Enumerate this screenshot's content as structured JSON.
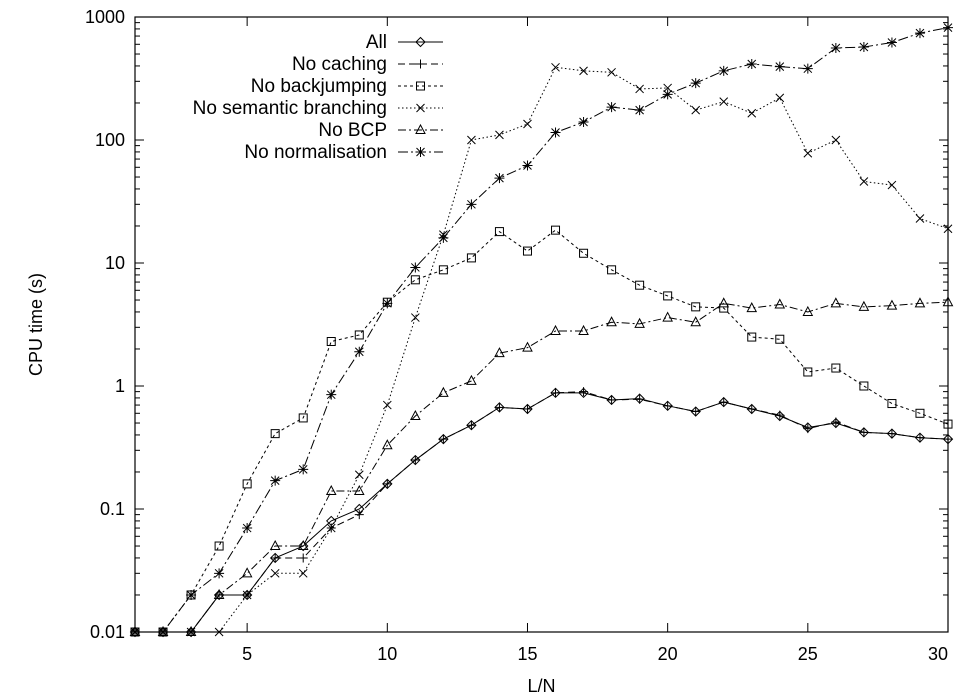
{
  "chart_data": {
    "type": "line",
    "xlabel": "L/N",
    "ylabel": "CPU time (s)",
    "xlim": [
      1,
      30
    ],
    "ylim": [
      0.01,
      1000
    ],
    "yscale": "log",
    "grid": false,
    "legend_position": "top-left",
    "x_ticks": [
      5,
      10,
      15,
      20,
      25,
      30
    ],
    "x_tick_labels": [
      "5",
      "10",
      "15",
      "20",
      "25",
      "30"
    ],
    "y_ticks": [
      0.01,
      0.1,
      1,
      10,
      100,
      1000
    ],
    "y_tick_labels": [
      "0.01",
      "0.1",
      "1",
      "10",
      "100",
      "1000"
    ],
    "x": [
      1,
      2,
      3,
      4,
      5,
      6,
      7,
      8,
      9,
      10,
      11,
      12,
      13,
      14,
      15,
      16,
      17,
      18,
      19,
      20,
      21,
      22,
      23,
      24,
      25,
      26,
      27,
      28,
      29,
      30
    ],
    "series": [
      {
        "name": "All",
        "marker": "diamond",
        "dash": "",
        "values": [
          0.01,
          0.01,
          0.01,
          0.02,
          0.02,
          0.04,
          0.05,
          0.08,
          0.1,
          0.16,
          0.25,
          0.37,
          0.48,
          0.67,
          0.65,
          0.88,
          0.88,
          0.77,
          0.79,
          0.69,
          0.62,
          0.74,
          0.65,
          0.57,
          0.46,
          0.5,
          0.42,
          0.41,
          0.38,
          0.37
        ]
      },
      {
        "name": "No caching",
        "marker": "plus",
        "dash": "7,4",
        "values": [
          0.01,
          0.01,
          0.01,
          0.02,
          0.02,
          0.04,
          0.04,
          0.07,
          0.09,
          0.16,
          0.25,
          0.37,
          0.48,
          0.67,
          0.65,
          0.88,
          0.9,
          0.77,
          0.78,
          0.69,
          0.62,
          0.74,
          0.65,
          0.58,
          0.45,
          0.51,
          0.42,
          0.41,
          0.38,
          0.37
        ]
      },
      {
        "name": "No backjumping",
        "marker": "square",
        "dash": "3,3",
        "values": [
          0.01,
          0.01,
          0.02,
          0.05,
          0.16,
          0.41,
          0.55,
          2.3,
          2.6,
          4.8,
          7.3,
          8.8,
          11,
          18,
          12.5,
          18.5,
          12,
          8.8,
          6.6,
          5.4,
          4.4,
          4.3,
          2.5,
          2.4,
          1.3,
          1.4,
          1.0,
          0.72,
          0.6,
          0.49
        ]
      },
      {
        "name": "No semantic branching",
        "marker": "x",
        "dash": "1.5,2.5",
        "values": [
          0.01,
          0.01,
          0.01,
          0.01,
          0.02,
          0.03,
          0.03,
          0.07,
          0.19,
          0.7,
          3.6,
          17,
          100,
          110,
          135,
          390,
          365,
          355,
          260,
          265,
          175,
          205,
          165,
          220,
          78,
          100,
          46,
          43,
          23,
          19
        ]
      },
      {
        "name": "No BCP",
        "marker": "triangle",
        "dash": "8,3,2,3",
        "values": [
          0.01,
          0.01,
          0.01,
          0.02,
          0.03,
          0.05,
          0.05,
          0.14,
          0.14,
          0.33,
          0.57,
          0.88,
          1.1,
          1.85,
          2.05,
          2.8,
          2.8,
          3.3,
          3.2,
          3.6,
          3.3,
          4.7,
          4.3,
          4.6,
          4.0,
          4.7,
          4.4,
          4.5,
          4.7,
          4.8
        ]
      },
      {
        "name": "No normalisation",
        "marker": "star",
        "dash": "10,3,2,3",
        "values": [
          0.01,
          0.01,
          0.02,
          0.03,
          0.07,
          0.17,
          0.21,
          0.85,
          1.9,
          4.7,
          9.2,
          16,
          30,
          49,
          62,
          115,
          140,
          185,
          175,
          235,
          290,
          365,
          415,
          395,
          380,
          560,
          570,
          620,
          740,
          820
        ]
      }
    ]
  }
}
